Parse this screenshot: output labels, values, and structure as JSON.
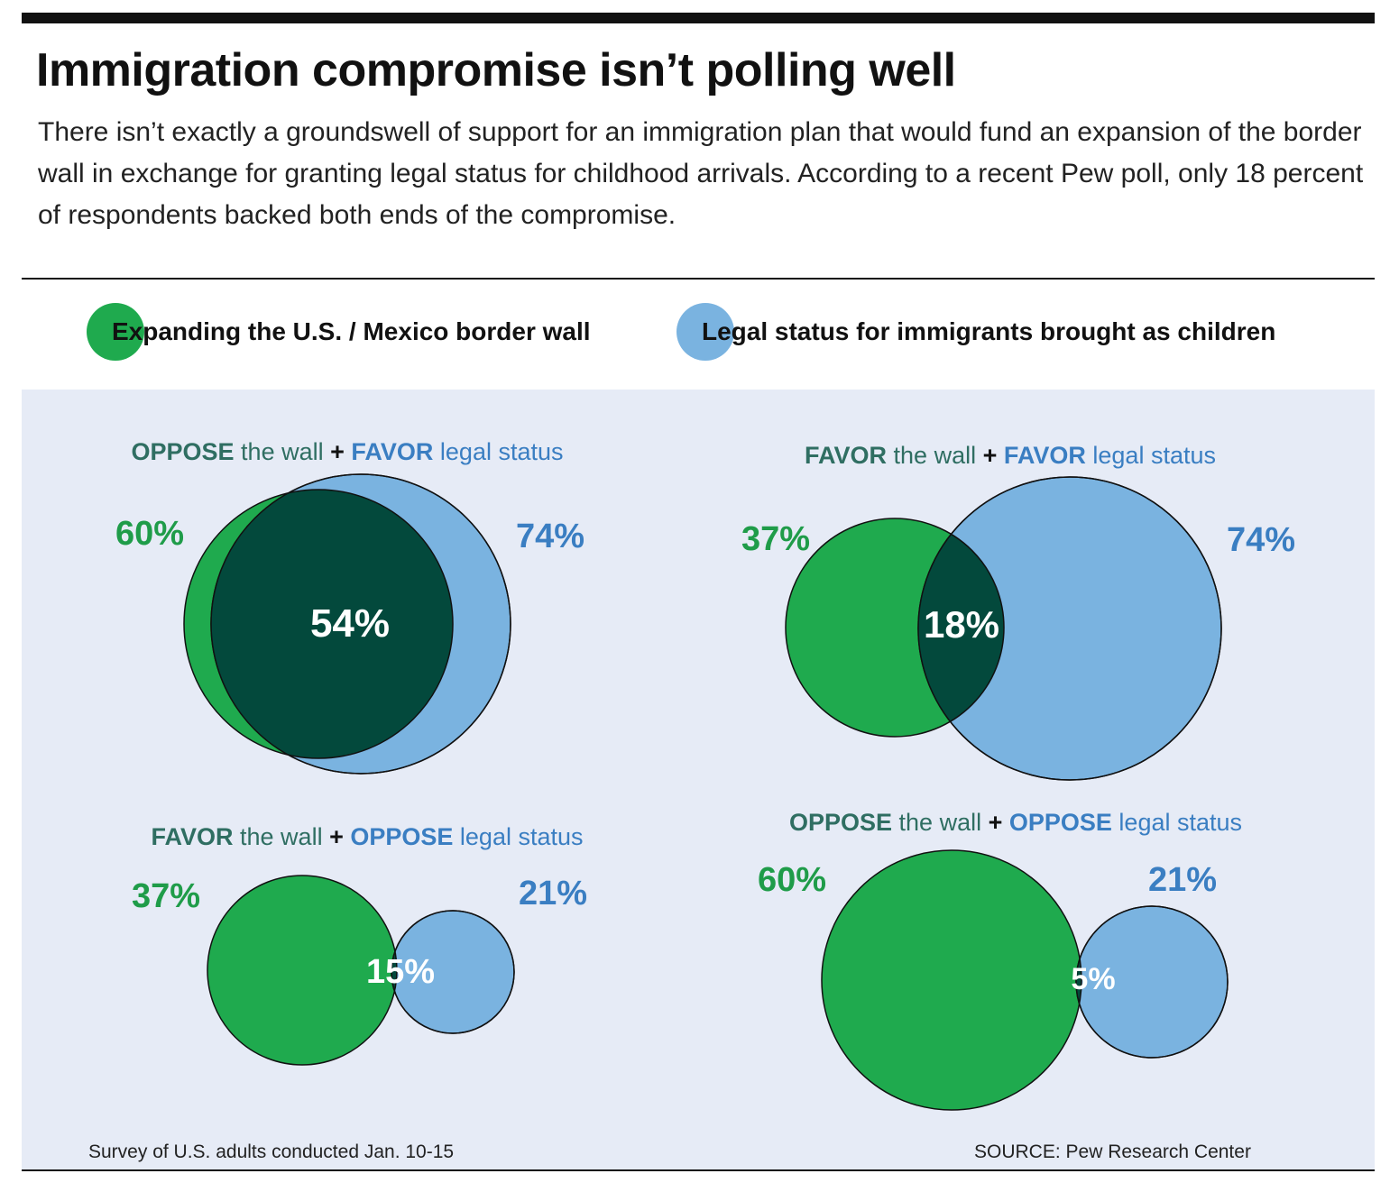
{
  "title": "Immigration compromise isn’t polling well",
  "subtitle": "There isn’t exactly a groundswell of support for an immigration plan that would fund an expansion of the border wall in exchange for granting legal status for childhood arrivals. According to a recent Pew poll, only 18 percent of respondents backed both ends of the compromise.",
  "legend": {
    "wall": "Expanding the U.S. / Mexico border wall",
    "legal": "Legal status for immigrants brought as children"
  },
  "colors": {
    "green": "#1faa4e",
    "blue": "#7ab3e0",
    "overlap": "#03493c",
    "green_text": "#1f9c49",
    "blue_text": "#3a7ec2",
    "teal_text": "#2f6e62",
    "panel": "#e6ebf6"
  },
  "footnote": "Survey of U.S. adults conducted Jan. 10-15",
  "source": "SOURCE: Pew Research Center",
  "chart_data": [
    {
      "type": "venn",
      "title_parts": [
        {
          "text": "OPPOSE",
          "bold": true,
          "color": "teal"
        },
        {
          "text": " the wall ",
          "bold": false,
          "color": "teal"
        },
        {
          "text": "+",
          "bold": true,
          "color": "black"
        },
        {
          "text": " FAVOR",
          "bold": true,
          "color": "blue"
        },
        {
          "text": " legal status",
          "bold": false,
          "color": "blue"
        }
      ],
      "sets": [
        {
          "name": "OPPOSE the wall",
          "value": 60,
          "label": "60%"
        },
        {
          "name": "FAVOR legal status",
          "value": 74,
          "label": "74%"
        }
      ],
      "overlap": {
        "value": 54,
        "label": "54%"
      }
    },
    {
      "type": "venn",
      "title_parts": [
        {
          "text": "FAVOR",
          "bold": true,
          "color": "teal"
        },
        {
          "text": " the wall ",
          "bold": false,
          "color": "teal"
        },
        {
          "text": "+",
          "bold": true,
          "color": "black"
        },
        {
          "text": " FAVOR",
          "bold": true,
          "color": "blue"
        },
        {
          "text": " legal status",
          "bold": false,
          "color": "blue"
        }
      ],
      "sets": [
        {
          "name": "FAVOR the wall",
          "value": 37,
          "label": "37%"
        },
        {
          "name": "FAVOR legal status",
          "value": 74,
          "label": "74%"
        }
      ],
      "overlap": {
        "value": 18,
        "label": "18%"
      }
    },
    {
      "type": "venn",
      "title_parts": [
        {
          "text": "FAVOR",
          "bold": true,
          "color": "teal"
        },
        {
          "text": " the wall ",
          "bold": false,
          "color": "teal"
        },
        {
          "text": "+",
          "bold": true,
          "color": "black"
        },
        {
          "text": " OPPOSE",
          "bold": true,
          "color": "blue"
        },
        {
          "text": " legal status",
          "bold": false,
          "color": "blue"
        }
      ],
      "sets": [
        {
          "name": "FAVOR the wall",
          "value": 37,
          "label": "37%"
        },
        {
          "name": "OPPOSE legal status",
          "value": 21,
          "label": "21%"
        }
      ],
      "overlap": {
        "value": 15,
        "label": "15%"
      }
    },
    {
      "type": "venn",
      "title_parts": [
        {
          "text": "OPPOSE",
          "bold": true,
          "color": "teal"
        },
        {
          "text": " the wall ",
          "bold": false,
          "color": "teal"
        },
        {
          "text": "+",
          "bold": true,
          "color": "black"
        },
        {
          "text": " OPPOSE",
          "bold": true,
          "color": "blue"
        },
        {
          "text": " legal status",
          "bold": false,
          "color": "blue"
        }
      ],
      "sets": [
        {
          "name": "OPPOSE the wall",
          "value": 60,
          "label": "60%"
        },
        {
          "name": "OPPOSE legal status",
          "value": 21,
          "label": "21%"
        }
      ],
      "overlap": {
        "value": 5,
        "label": "5%"
      }
    }
  ]
}
